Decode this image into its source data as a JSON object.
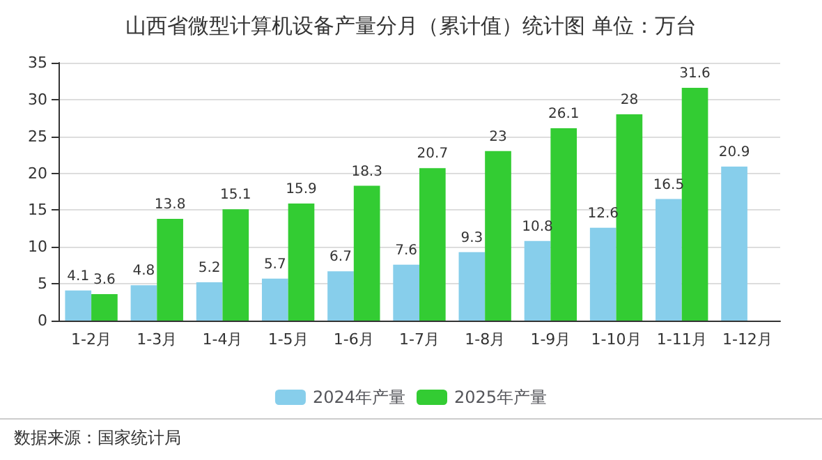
{
  "chart_data": {
    "type": "bar",
    "title": "山西省微型计算机设备产量分月（累计值）统计图 单位：万台",
    "categories": [
      "1-2月",
      "1-3月",
      "1-4月",
      "1-5月",
      "1-6月",
      "1-7月",
      "1-8月",
      "1-9月",
      "1-10月",
      "1-11月",
      "1-12月"
    ],
    "series": [
      {
        "name": "2024年产量",
        "color": "#87ceeb",
        "values": [
          4.1,
          4.8,
          5.2,
          5.7,
          6.7,
          7.6,
          9.3,
          10.8,
          12.6,
          16.5,
          20.9
        ]
      },
      {
        "name": "2025年产量",
        "color": "#33cc33",
        "values": [
          3.6,
          13.8,
          15.1,
          15.9,
          18.3,
          20.7,
          23,
          26.1,
          28,
          31.6,
          null
        ]
      }
    ],
    "ylim": [
      0,
      35
    ],
    "yticks": [
      0,
      5,
      10,
      15,
      20,
      25,
      30,
      35
    ],
    "grid": "y",
    "legend": "bottom",
    "data_labels": true,
    "annotations": [
      "数据来源：国家统计局"
    ]
  }
}
